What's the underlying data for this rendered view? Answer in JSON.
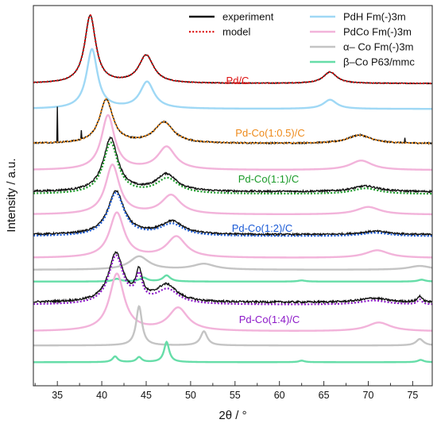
{
  "chart_data": {
    "type": "line",
    "xlabel": "2θ / °",
    "ylabel": "Intensity / a.u.",
    "xlim": [
      32.3,
      77.2
    ],
    "ylim": [
      0,
      100
    ],
    "x_ticks": [
      35,
      40,
      45,
      50,
      55,
      60,
      65,
      70,
      75
    ],
    "y_tick_labels_shown": false,
    "grid": false,
    "legend": {
      "placement": "top-right",
      "entries": [
        {
          "label": "experiment",
          "color": "#111111",
          "style": "solid"
        },
        {
          "label": "model",
          "color": "#dd1111",
          "style": "dotted"
        },
        {
          "label": "PdH Fm(-)3m",
          "color": "#9fd8f5",
          "style": "solid"
        },
        {
          "label": "PdCo Fm(-)3m",
          "color": "#f2b3da",
          "style": "solid"
        },
        {
          "label": "α– Co Fm(-)3m",
          "color": "#c4c4c4",
          "style": "solid"
        },
        {
          "label": "β–Co P63/mmc",
          "color": "#66dda8",
          "style": "solid"
        }
      ]
    },
    "samples": [
      {
        "label": "Pd/C",
        "label_color": "#dd1111",
        "model_color": "#dd1111",
        "baseline": 79.5,
        "noise": 0.2,
        "offset": 0.0,
        "spikes": [],
        "experiment_peaks": [
          [
            38.7,
            17.8,
            0.75
          ],
          [
            45.0,
            7.3,
            1.0
          ],
          [
            65.7,
            3.0,
            0.9
          ]
        ],
        "model_peaks": [
          [
            38.7,
            17.8,
            0.75
          ],
          [
            45.0,
            7.3,
            1.0
          ],
          [
            65.7,
            3.0,
            0.9
          ]
        ]
      },
      {
        "label": "Pd-Co(1:0.5)/C",
        "label_color": "#ee8a1a",
        "model_color": "#ee8a1a",
        "baseline": 63.7,
        "noise": 0.35,
        "offset": 0.0,
        "spikes": [
          [
            35.0,
            9.5
          ],
          [
            37.7,
            2.4
          ],
          [
            74.1,
            1.2
          ]
        ],
        "experiment_peaks": [
          [
            40.5,
            11.5,
            0.9
          ],
          [
            47.0,
            5.5,
            1.3
          ],
          [
            69.0,
            2.2,
            1.6
          ]
        ],
        "model_peaks": [
          [
            40.5,
            11.5,
            0.9
          ],
          [
            47.0,
            5.5,
            1.3
          ],
          [
            69.0,
            2.2,
            1.6
          ]
        ]
      },
      {
        "label": "Pd-Co(1:1)/C",
        "label_color": "#1a9a28",
        "model_color": "#1a9a28",
        "baseline": 51.0,
        "noise": 0.45,
        "offset": -0.6,
        "spikes": [],
        "experiment_peaks": [
          [
            41.0,
            14.0,
            1.0
          ],
          [
            47.3,
            4.5,
            1.4
          ],
          [
            69.7,
            1.5,
            1.8
          ]
        ],
        "model_peaks": [
          [
            41.0,
            13.4,
            1.0
          ],
          [
            47.4,
            4.0,
            1.5
          ],
          [
            69.7,
            1.5,
            1.8
          ]
        ]
      },
      {
        "label": "Pd-Co(1:2)/C",
        "label_color": "#1a5ad6",
        "model_color": "#1a5ad6",
        "baseline": 39.7,
        "noise": 0.45,
        "offset": -0.4,
        "spikes": [],
        "experiment_peaks": [
          [
            41.6,
            11.4,
            1.1
          ],
          [
            47.9,
            3.4,
            1.5
          ],
          [
            70.8,
            0.9,
            1.9
          ]
        ],
        "model_peaks": [
          [
            41.6,
            11.3,
            1.1
          ],
          [
            47.9,
            3.1,
            1.6
          ],
          [
            70.8,
            0.9,
            1.9
          ]
        ]
      },
      {
        "label": "Pd-Co(1:4)/C",
        "label_color": "#8c18c8",
        "model_color": "#8c18c8",
        "baseline": 21.9,
        "noise": 0.5,
        "offset": -0.6,
        "spikes": [],
        "experiment_peaks": [
          [
            41.6,
            12.8,
            1.0
          ],
          [
            44.2,
            7.0,
            0.45
          ],
          [
            47.3,
            4.4,
            1.4
          ],
          [
            70.6,
            1.1,
            1.9
          ],
          [
            75.8,
            1.6,
            0.3
          ]
        ],
        "model_peaks": [
          [
            41.6,
            12.6,
            1.0
          ],
          [
            44.2,
            6.4,
            0.45
          ],
          [
            47.4,
            3.8,
            1.5
          ],
          [
            70.6,
            1.1,
            1.9
          ],
          [
            75.8,
            1.3,
            0.3
          ]
        ]
      }
    ],
    "reference_patterns": [
      {
        "phase": "PdH Fm(-)3m",
        "color": "#9fd8f5",
        "baseline": 72.8,
        "peaks": [
          [
            38.9,
            15.6,
            0.75
          ],
          [
            45.1,
            7.0,
            0.95
          ],
          [
            65.7,
            2.4,
            0.9
          ]
        ]
      },
      {
        "phase": "PdCo Fm(-)3m",
        "color": "#f2b3da",
        "baseline": 56.7,
        "peaks": [
          [
            40.7,
            14.3,
            0.9
          ],
          [
            47.3,
            6.0,
            1.2
          ],
          [
            69.2,
            2.5,
            1.5
          ]
        ]
      },
      {
        "phase": "PdCo Fm(-)3m",
        "color": "#f2b3da",
        "baseline": 45.0,
        "peaks": [
          [
            41.2,
            13.0,
            0.95
          ],
          [
            47.8,
            5.0,
            1.3
          ],
          [
            70.0,
            2.0,
            1.6
          ]
        ]
      },
      {
        "phase": "PdCo Fm(-)3m",
        "color": "#f2b3da",
        "baseline": 33.6,
        "peaks": [
          [
            41.7,
            11.8,
            1.0
          ],
          [
            48.4,
            5.5,
            1.3
          ],
          [
            71.0,
            2.0,
            1.6
          ]
        ]
      },
      {
        "phase": "α– Co Fm(-)3m",
        "color": "#c4c4c4",
        "baseline": 30.5,
        "peaks": [
          [
            44.2,
            3.5,
            1.3
          ],
          [
            51.5,
            1.5,
            1.5
          ],
          [
            75.8,
            1.0,
            1.5
          ]
        ]
      },
      {
        "phase": "β–Co P63/mmc",
        "color": "#66dda8",
        "baseline": 27.4,
        "peaks": [
          [
            41.7,
            0.7,
            0.5
          ],
          [
            44.7,
            1.0,
            0.5
          ],
          [
            47.3,
            1.6,
            0.5
          ],
          [
            62.5,
            0.3,
            0.5
          ],
          [
            76.0,
            0.5,
            0.5
          ]
        ]
      },
      {
        "phase": "PdCo Fm(-)3m",
        "color": "#f2b3da",
        "baseline": 14.3,
        "peaks": [
          [
            41.7,
            15.0,
            1.0
          ],
          [
            48.6,
            6.0,
            1.3
          ],
          [
            71.2,
            2.3,
            1.6
          ]
        ]
      },
      {
        "phase": "α– Co Fm(-)3m",
        "color": "#c4c4c4",
        "baseline": 10.6,
        "peaks": [
          [
            44.2,
            10.3,
            0.4
          ],
          [
            51.5,
            3.7,
            0.45
          ],
          [
            75.8,
            1.7,
            0.5
          ]
        ]
      },
      {
        "phase": "β–Co P63/mmc",
        "color": "#66dda8",
        "baseline": 6.2,
        "peaks": [
          [
            41.5,
            1.5,
            0.35
          ],
          [
            44.2,
            1.3,
            0.35
          ],
          [
            47.3,
            5.3,
            0.35
          ],
          [
            62.5,
            0.4,
            0.4
          ],
          [
            75.9,
            0.6,
            0.4
          ]
        ]
      }
    ]
  }
}
